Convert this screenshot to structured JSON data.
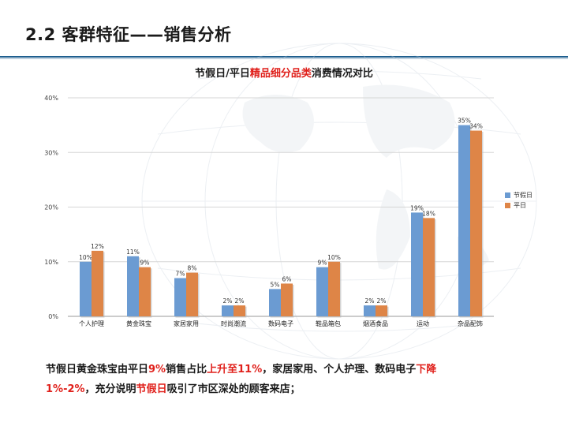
{
  "slide": {
    "title": "2.2 客群特征——销售分析"
  },
  "chart_title": {
    "part1": "节假日/平日",
    "highlight": "精品细分品类",
    "part2": "消费情况对比"
  },
  "colors": {
    "holiday": "#6b9bd2",
    "weekday": "#de8547",
    "accent_red": "#e0201b",
    "rule": "#1f5f8f"
  },
  "chart_data": {
    "type": "bar",
    "title": "节假日/平日精品细分品类消费情况对比",
    "categories": [
      "个人护理",
      "黄金珠宝",
      "家居家用",
      "时尚潮流",
      "数码电子",
      "鞋品箱包",
      "烟酒食品",
      "运动",
      "杂品配饰"
    ],
    "series": [
      {
        "name": "节假日",
        "values": [
          10,
          11,
          7,
          2,
          5,
          9,
          2,
          19,
          35
        ],
        "labels": [
          "10%",
          "11%",
          "7%",
          "2%",
          "5%",
          "9%",
          "2%",
          "19%",
          "35%"
        ]
      },
      {
        "name": "平日",
        "values": [
          12,
          9,
          8,
          2,
          6,
          10,
          2,
          18,
          34
        ],
        "labels": [
          "12%",
          "9%",
          "8%",
          "2%",
          "6%",
          "10%",
          "2%",
          "18%",
          "34%"
        ]
      }
    ],
    "ylim": [
      0,
      40
    ],
    "yticks": [
      0,
      10,
      20,
      30,
      40
    ],
    "ytick_labels": [
      "0%",
      "10%",
      "20%",
      "30%",
      "40%"
    ],
    "grid": true,
    "legend_position": "right",
    "xlabel": "",
    "ylabel": ""
  },
  "footnote": {
    "l1_a": "节假日黄金珠宝由平日",
    "l1_b": "9%",
    "l1_c": "销售占比",
    "l1_d": "上升至11%",
    "l1_e": "，家居家用、个人护理、数码电子",
    "l1_f": "下降",
    "l2_a": "1%-2%",
    "l2_b": "，充分说明",
    "l2_c": "节假日",
    "l2_d": "吸引了市区深处的顾客来店；"
  }
}
